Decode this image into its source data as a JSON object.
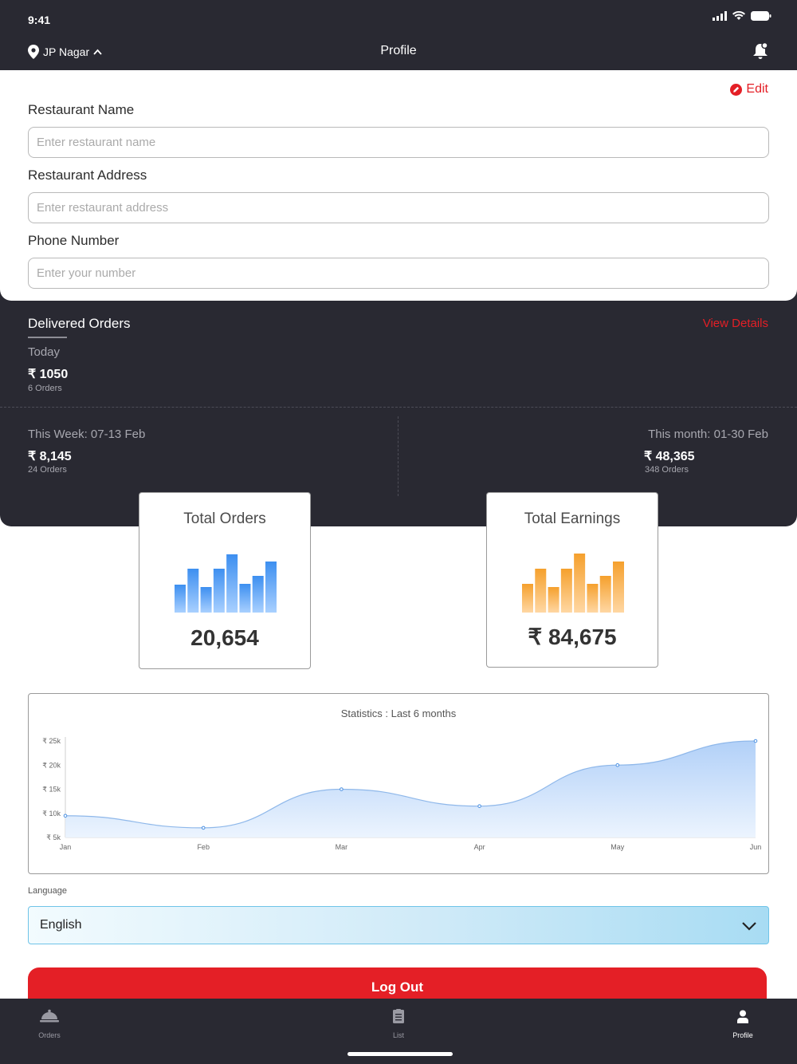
{
  "status": {
    "time": "9:41"
  },
  "header": {
    "location": "JP Nagar",
    "title": "Profile",
    "icons": [
      "location-pin-icon",
      "chevron-up-icon",
      "notification-bell-icon"
    ]
  },
  "form": {
    "edit_label": "Edit",
    "fields": [
      {
        "label": "Restaurant Name",
        "placeholder": "Enter restaurant name",
        "value": ""
      },
      {
        "label": "Restaurant Address",
        "placeholder": "Enter restaurant address",
        "value": ""
      },
      {
        "label": "Phone Number",
        "placeholder": "Enter your number",
        "value": ""
      }
    ]
  },
  "delivered": {
    "title": "Delivered Orders",
    "view_details": "View Details",
    "today": {
      "label": "Today",
      "amount": "₹ 1050",
      "orders": "6 Orders"
    },
    "week": {
      "label": "This Week: 07-13 Feb",
      "amount": "₹ 8,145",
      "orders": "24 Orders"
    },
    "month": {
      "label": "This month: 01-30 Feb",
      "amount": "₹ 48,365",
      "orders": "348 Orders"
    }
  },
  "stats": {
    "total_orders": {
      "label": "Total Orders",
      "value": "20,654",
      "bars": [
        35,
        55,
        32,
        55,
        73,
        36,
        46,
        64
      ],
      "color_top": "#3d8ff0",
      "color_bottom": "#a9d0ff"
    },
    "total_earnings": {
      "label": "Total Earnings",
      "value": "₹ 84,675",
      "bars": [
        36,
        55,
        32,
        55,
        74,
        36,
        46,
        64
      ],
      "color_top": "#f5a02d",
      "color_bottom": "#ffd7a3"
    }
  },
  "chart_data": {
    "type": "area",
    "title": "Statistics : Last 6 months",
    "categories": [
      "Jan",
      "Feb",
      "Mar",
      "Apr",
      "May",
      "Jun"
    ],
    "values": [
      9500,
      7000,
      15000,
      11500,
      20000,
      25000
    ],
    "ytick_labels": [
      "₹ 25k",
      "₹ 20k",
      "₹ 15k",
      "₹ 10k",
      "₹ 5k"
    ],
    "yticks": [
      25000,
      20000,
      15000,
      10000,
      5000
    ],
    "ylim": [
      5000,
      25000
    ],
    "color": "#4a90e2"
  },
  "language": {
    "label": "Language",
    "selected": "English"
  },
  "logout_label": "Log Out",
  "tabs": [
    {
      "label": "Orders",
      "icon": "cloche-icon",
      "active": false
    },
    {
      "label": "List",
      "icon": "clipboard-list-icon",
      "active": false
    },
    {
      "label": "Profile",
      "icon": "person-icon",
      "active": true
    }
  ]
}
